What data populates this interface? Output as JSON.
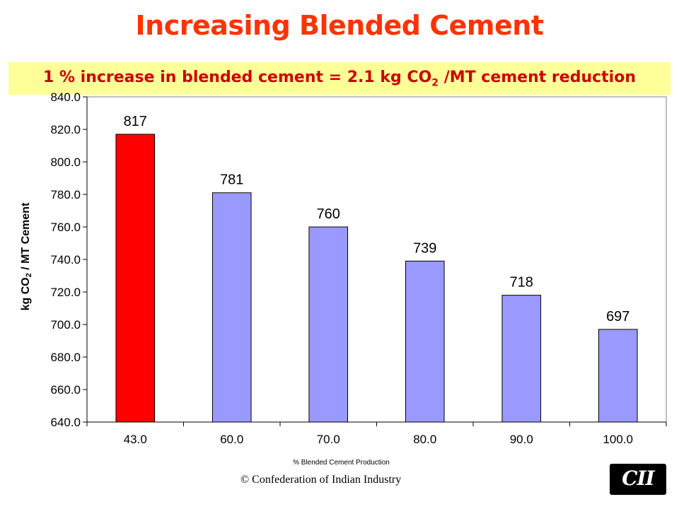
{
  "title": "Increasing Blended Cement",
  "subtitle": {
    "text_before": "1 % increase in blended cement = 2.1 kg CO",
    "subscript": "2",
    "text_after": " /MT cement reduction"
  },
  "footer": "© Confederation of Indian Industry",
  "logo_text": "CII",
  "colors": {
    "title": "#ff3300",
    "subtitle": "#cc0000",
    "subtitle_band": "#ffff99",
    "bar_default": "#9999ff",
    "bar_highlight": "#ff0000"
  },
  "chart_data": {
    "type": "bar",
    "categories": [
      "43.0",
      "60.0",
      "70.0",
      "80.0",
      "90.0",
      "100.0"
    ],
    "values": [
      817,
      781,
      760,
      739,
      718,
      697
    ],
    "data_labels": [
      "817",
      "781",
      "760",
      "739",
      "718",
      "697"
    ],
    "highlight_index": 0,
    "xlabel": "% Blended Cement Production",
    "ylabel_before": "kg CO",
    "ylabel_sub": "2",
    "ylabel_after": " / MT Cement",
    "ylim": [
      640,
      840
    ],
    "yticks": [
      640,
      660,
      680,
      700,
      720,
      740,
      760,
      780,
      800,
      820,
      840
    ],
    "ytick_labels": [
      "640.0",
      "660.0",
      "680.0",
      "700.0",
      "720.0",
      "740.0",
      "760.0",
      "780.0",
      "800.0",
      "820.0",
      "840.0"
    ],
    "grid": false,
    "legend": false
  }
}
